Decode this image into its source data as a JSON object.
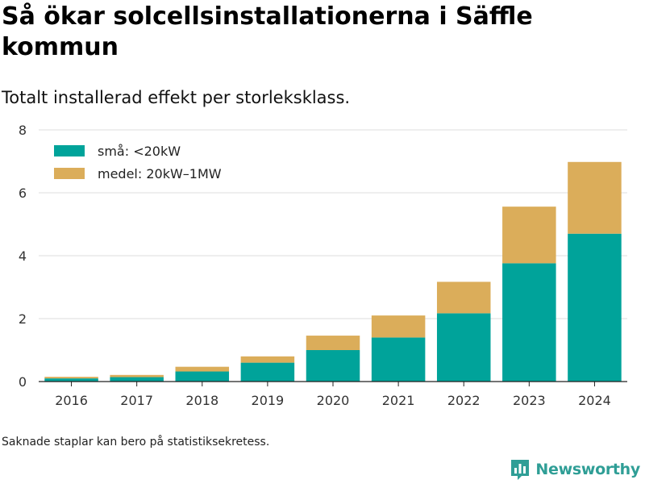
{
  "header": {
    "title": "Så ökar solcellsinstallationerna i Säffle kommun",
    "subtitle": "Totalt installerad effekt per storleksklass."
  },
  "footer": {
    "note": "Saknade staplar kan bero på statistiksekretess.",
    "brand": "Newsworthy",
    "brand_icon": "newsworthy-logo-icon"
  },
  "colors": {
    "small": "#00a39a",
    "medium": "#dbad5a",
    "grid": "#dddddd",
    "axis": "#222222",
    "brand": "#2f9e96"
  },
  "chart_data": {
    "type": "bar",
    "stacked": true,
    "categories": [
      "2016",
      "2017",
      "2018",
      "2019",
      "2020",
      "2021",
      "2022",
      "2023",
      "2024"
    ],
    "series": [
      {
        "name": "små: <20kW",
        "color": "#00a39a",
        "values": [
          0.1,
          0.14,
          0.32,
          0.6,
          1.0,
          1.4,
          2.17,
          3.76,
          4.7
        ]
      },
      {
        "name": "medel: 20kW–1MW",
        "color": "#dbad5a",
        "values": [
          0.05,
          0.07,
          0.15,
          0.2,
          0.46,
          0.7,
          1.0,
          1.8,
          2.28
        ]
      }
    ],
    "ylim": [
      0,
      8
    ],
    "yticks": [
      "0",
      "2",
      "4",
      "6",
      "8"
    ],
    "legend_position": "top-left",
    "grid": true
  }
}
